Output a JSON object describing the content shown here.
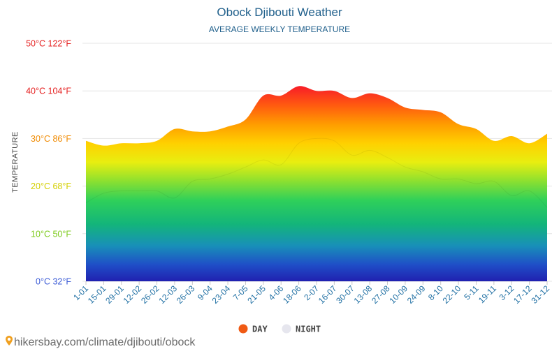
{
  "chart_data": {
    "type": "area",
    "title": "Obock Djibouti Weather",
    "subtitle": "AVERAGE WEEKLY TEMPERATURE",
    "ylabel": "TEMPERATURE",
    "xlabel": "",
    "ylim": [
      0,
      50
    ],
    "yticks": [
      {
        "value": 0,
        "label": "0°C 32°F",
        "color": "#3b5bd6"
      },
      {
        "value": 10,
        "label": "10°C 50°F",
        "color": "#7ecb1e"
      },
      {
        "value": 20,
        "label": "20°C 68°F",
        "color": "#d4cf00"
      },
      {
        "value": 30,
        "label": "30°C 86°F",
        "color": "#f08a00"
      },
      {
        "value": 40,
        "label": "40°C 104°F",
        "color": "#e52020"
      },
      {
        "value": 50,
        "label": "50°C 122°F",
        "color": "#e52020"
      }
    ],
    "categories": [
      "1-01",
      "15-01",
      "29-01",
      "12-02",
      "26-02",
      "12-03",
      "26-03",
      "9-04",
      "23-04",
      "7-05",
      "21-05",
      "4-06",
      "18-06",
      "2-07",
      "16-07",
      "30-07",
      "13-08",
      "27-08",
      "10-09",
      "24-09",
      "8-10",
      "22-10",
      "5-11",
      "19-11",
      "3-12",
      "17-12",
      "31-12"
    ],
    "series": [
      {
        "name": "DAY",
        "color": "#f05a14",
        "values": [
          29.5,
          28.5,
          29,
          29,
          29.5,
          32,
          31.5,
          31.5,
          32.5,
          34,
          39,
          39,
          41,
          40,
          40,
          38.5,
          39.5,
          38.5,
          36.5,
          36,
          35.5,
          33,
          32,
          29.5,
          30.5,
          29,
          31
        ]
      },
      {
        "name": "NIGHT",
        "color": "#e6e6ee",
        "values": [
          16.5,
          18.5,
          19,
          19,
          19,
          17.5,
          21,
          21.5,
          22.5,
          24,
          25.5,
          24.5,
          29,
          30,
          29.5,
          26.5,
          27.5,
          26,
          24,
          23,
          21.5,
          21.5,
          20.5,
          21,
          18,
          19,
          15.5
        ]
      }
    ]
  },
  "legend": {
    "day_label": "DAY",
    "night_label": "NIGHT",
    "day_color": "#f05a14",
    "night_color": "#e6e6ee"
  },
  "source": {
    "pin_icon": "map-pin-icon",
    "text": "hikersbay.com/climate/djibouti/obock"
  }
}
